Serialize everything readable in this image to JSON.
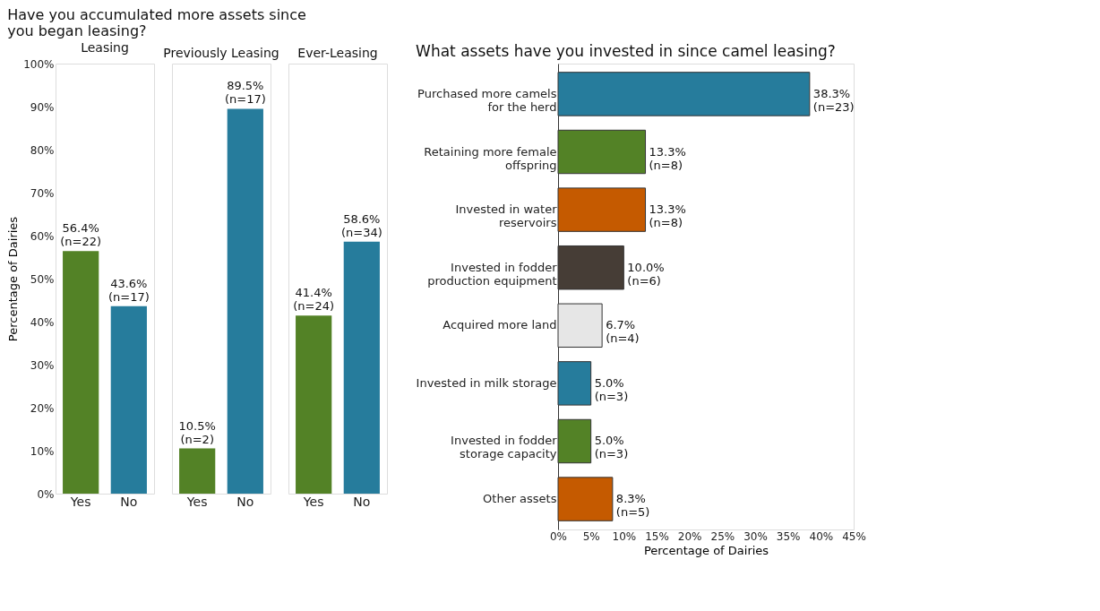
{
  "chart_data": [
    {
      "type": "bar",
      "title": "Have you accumulated more assets since you began leasing?",
      "subtitle": "Leasing",
      "ylabel": "Percentage of Dairies",
      "categories": [
        "Yes",
        "No"
      ],
      "values": [
        56.4,
        43.6
      ],
      "colors": [
        "#538226",
        "#267c9c"
      ],
      "value_labels": [
        "56.4%\n(n=22)",
        "43.6%\n(n=17)"
      ],
      "ylim": [
        0,
        100
      ],
      "yticks": [
        {
          "value": 0,
          "label": "0%"
        },
        {
          "value": 10,
          "label": "10%"
        },
        {
          "value": 20,
          "label": "20%"
        },
        {
          "value": 30,
          "label": "30%"
        },
        {
          "value": 40,
          "label": "40%"
        },
        {
          "value": 50,
          "label": "50%"
        },
        {
          "value": 60,
          "label": "60%"
        },
        {
          "value": 70,
          "label": "70%"
        },
        {
          "value": 80,
          "label": "80%"
        },
        {
          "value": 90,
          "label": "90%"
        },
        {
          "value": 100,
          "label": "100%"
        }
      ],
      "grid": false
    },
    {
      "type": "bar",
      "subtitle": "Previously Leasing",
      "categories": [
        "Yes",
        "No"
      ],
      "values": [
        10.5,
        89.5
      ],
      "colors": [
        "#538226",
        "#267c9c"
      ],
      "value_labels": [
        "10.5%\n(n=2)",
        "89.5%\n(n=17)"
      ],
      "ylim": [
        0,
        100
      ],
      "tick_labels": "x",
      "grid": false
    },
    {
      "type": "bar",
      "subtitle": "Ever-Leasing",
      "categories": [
        "Yes",
        "No"
      ],
      "values": [
        41.4,
        58.6
      ],
      "colors": [
        "#538226",
        "#267c9c"
      ],
      "value_labels": [
        "41.4%\n(n=24)",
        "58.6%\n(n=34)"
      ],
      "ylim": [
        0,
        100
      ],
      "tick_labels": "x",
      "grid": false
    },
    {
      "type": "bar",
      "orientation": "horizontal",
      "title": "What assets have you invested in since camel leasing?",
      "xlabel": "Percentage of Dairies",
      "categories": [
        "Purchased more camels for the herd",
        "Retaining more female offspring",
        "Invested in water reservoirs",
        "Invested in fodder production equipment",
        "Acquired more land",
        "Invested in milk storage",
        "Invested in fodder storage capacity",
        "Other assets"
      ],
      "values": [
        38.3,
        13.3,
        13.3,
        10.0,
        6.7,
        5.0,
        5.0,
        8.3
      ],
      "colors": [
        "#267c9c",
        "#538226",
        "#c55a00",
        "#463d36",
        "#e6e6e6",
        "#267c9c",
        "#538226",
        "#c55a00"
      ],
      "value_labels": [
        "38.3%\n(n=23)",
        "13.3%\n(n=8)",
        "13.3%\n(n=8)",
        "10.0%\n(n=6)",
        "6.7%\n(n=4)",
        "5.0%\n(n=3)",
        "5.0%\n(n=3)",
        "8.3%\n(n=5)"
      ],
      "xlim": [
        0,
        45
      ],
      "xticks": [
        {
          "value": 0,
          "label": "0%"
        },
        {
          "value": 5,
          "label": "5%"
        },
        {
          "value": 10,
          "label": "10%"
        },
        {
          "value": 15,
          "label": "15%"
        },
        {
          "value": 20,
          "label": "20%"
        },
        {
          "value": 25,
          "label": "25%"
        },
        {
          "value": 30,
          "label": "30%"
        },
        {
          "value": 35,
          "label": "35%"
        },
        {
          "value": 40,
          "label": "40%"
        },
        {
          "value": 45,
          "label": "45%"
        }
      ],
      "grid": false
    }
  ]
}
